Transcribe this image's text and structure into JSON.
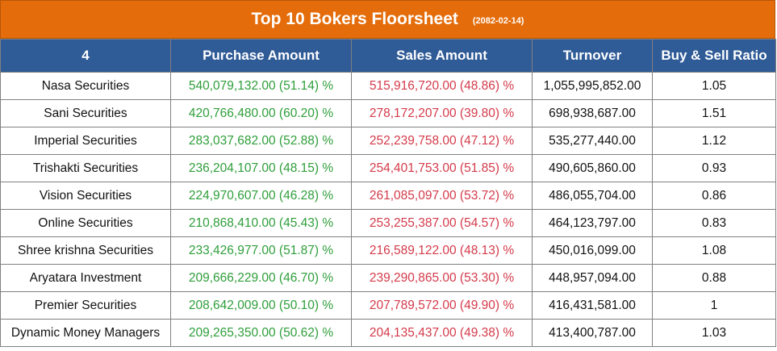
{
  "title": "Top 10 Bokers Floorsheet",
  "date": "(2082-02-14)",
  "columns": [
    "4",
    "Purchase Amount",
    "Sales Amount",
    "Turnover",
    "Buy & Sell Ratio"
  ],
  "colors": {
    "title_bg": "#e46c0a",
    "header_bg": "#2f5b97",
    "buy_text": "#2e9e3a",
    "sell_text": "#d43a4a"
  },
  "rows": [
    {
      "broker": "Nasa Securities",
      "purchase": "540,079,132.00 (51.14) %",
      "sales": "515,916,720.00 (48.86) %",
      "turnover": "1,055,995,852.00",
      "ratio": "1.05"
    },
    {
      "broker": "Sani Securities",
      "purchase": "420,766,480.00 (60.20) %",
      "sales": "278,172,207.00 (39.80) %",
      "turnover": "698,938,687.00",
      "ratio": "1.51"
    },
    {
      "broker": "Imperial Securities",
      "purchase": "283,037,682.00 (52.88) %",
      "sales": "252,239,758.00 (47.12) %",
      "turnover": "535,277,440.00",
      "ratio": "1.12"
    },
    {
      "broker": "Trishakti Securities",
      "purchase": "236,204,107.00 (48.15) %",
      "sales": "254,401,753.00 (51.85) %",
      "turnover": "490,605,860.00",
      "ratio": "0.93"
    },
    {
      "broker": "Vision Securities",
      "purchase": "224,970,607.00 (46.28) %",
      "sales": "261,085,097.00 (53.72) %",
      "turnover": "486,055,704.00",
      "ratio": "0.86"
    },
    {
      "broker": "Online Securities",
      "purchase": "210,868,410.00 (45.43) %",
      "sales": "253,255,387.00 (54.57) %",
      "turnover": "464,123,797.00",
      "ratio": "0.83"
    },
    {
      "broker": "Shree krishna Securities",
      "purchase": "233,426,977.00 (51.87) %",
      "sales": "216,589,122.00 (48.13) %",
      "turnover": "450,016,099.00",
      "ratio": "1.08"
    },
    {
      "broker": "Aryatara Investment",
      "purchase": "209,666,229.00 (46.70) %",
      "sales": "239,290,865.00 (53.30) %",
      "turnover": "448,957,094.00",
      "ratio": "0.88"
    },
    {
      "broker": "Premier Securities",
      "purchase": "208,642,009.00 (50.10) %",
      "sales": "207,789,572.00 (49.90) %",
      "turnover": "416,431,581.00",
      "ratio": "1"
    },
    {
      "broker": "Dynamic Money Managers",
      "purchase": "209,265,350.00 (50.62) %",
      "sales": "204,135,437.00 (49.38) %",
      "turnover": "413,400,787.00",
      "ratio": "1.03"
    }
  ]
}
